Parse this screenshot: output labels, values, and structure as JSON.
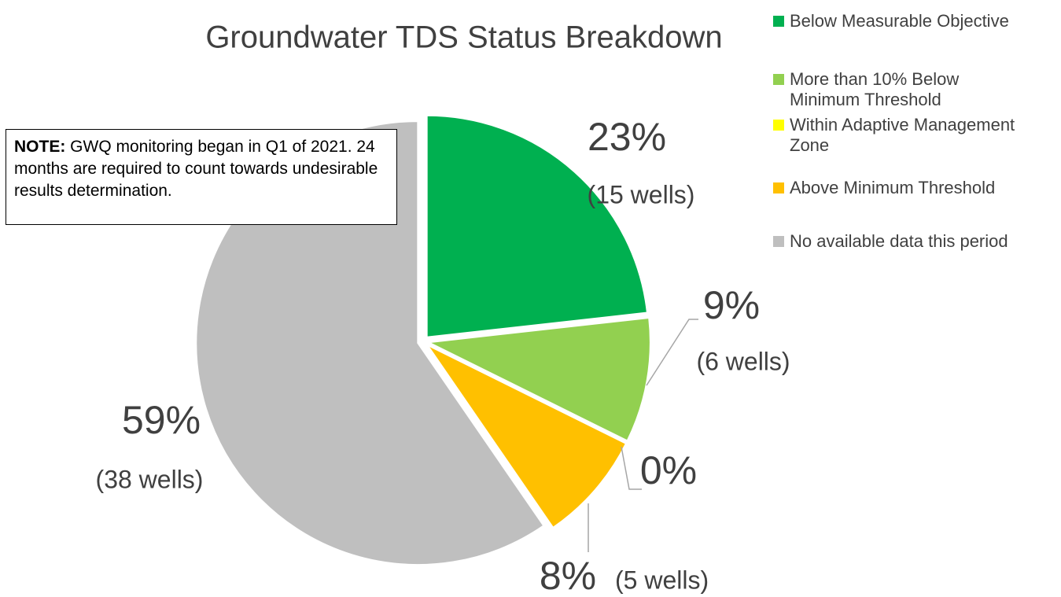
{
  "chart_data": {
    "type": "pie",
    "title": "Groundwater TDS Status Breakdown",
    "categories": [
      "Below Measurable Objective",
      "More than 10% Below Minimum Threshold",
      "Within Adaptive Management Zone",
      "Above Minimum Threshold",
      "No available data this period"
    ],
    "values": [
      23,
      9,
      0,
      8,
      59
    ],
    "value_labels": [
      "23%",
      "9%",
      "0%",
      "8%",
      "59%"
    ],
    "well_labels": [
      "(15 wells)",
      "(6 wells)",
      null,
      "(5 wells)",
      "(38 wells)"
    ],
    "colors": [
      "#00b050",
      "#92d050",
      "#ffff00",
      "#ffc000",
      "#bfbfbf"
    ],
    "legend": "top-right",
    "note": {
      "label": "NOTE:",
      "text": "GWQ monitoring began in Q1 of 2021. 24 months are required to count towards undesirable results determination."
    }
  }
}
